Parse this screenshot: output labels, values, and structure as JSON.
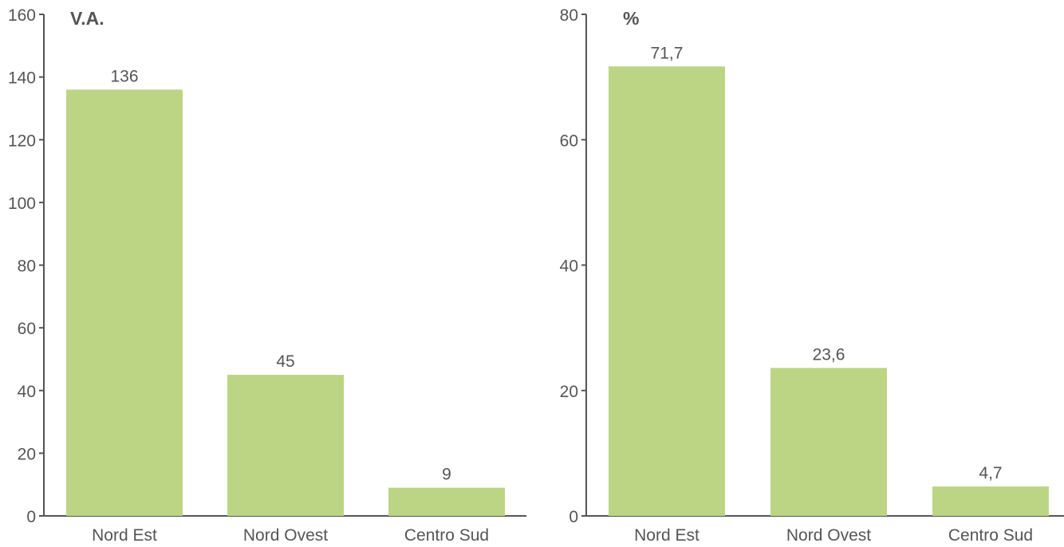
{
  "chart_data": [
    {
      "type": "bar",
      "title": "",
      "unit_label": "V.A.",
      "xlabel": "",
      "ylabel": "",
      "categories": [
        "Nord Est",
        "Nord Ovest",
        "Centro Sud"
      ],
      "values": [
        136,
        45,
        9
      ],
      "value_labels": [
        "136",
        "45",
        "9"
      ],
      "ylim": [
        0,
        160
      ],
      "yticks": [
        0,
        20,
        40,
        60,
        80,
        100,
        120,
        140,
        160
      ],
      "grid": false,
      "legend": "none",
      "bar_color": "#bcd584",
      "axis_color": "#555555"
    },
    {
      "type": "bar",
      "title": "",
      "unit_label": "%",
      "xlabel": "",
      "ylabel": "",
      "categories": [
        "Nord Est",
        "Nord Ovest",
        "Centro Sud"
      ],
      "values": [
        71.7,
        23.6,
        4.7
      ],
      "value_labels": [
        "71,7",
        "23,6",
        "4,7"
      ],
      "ylim": [
        0,
        80
      ],
      "yticks": [
        0,
        20,
        40,
        60,
        80
      ],
      "grid": false,
      "legend": "none",
      "bar_color": "#bcd584",
      "axis_color": "#555555"
    }
  ]
}
